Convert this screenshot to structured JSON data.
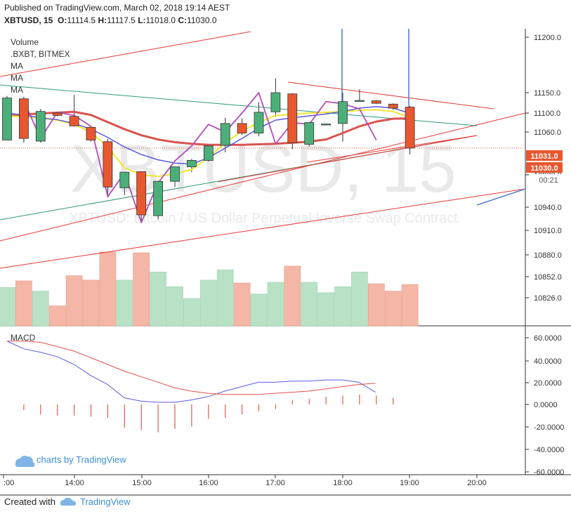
{
  "header": {
    "published": "Published on TradingView.com, March 02, 2018 19:14 AEST",
    "symbol": "XBTUSD, 15",
    "o_label": "O:",
    "o_value": "11114.5",
    "h_label": "H:",
    "h_value": "11117.5",
    "l_label": "L:",
    "l_value": "11018.0",
    "c_label": "C:",
    "c_value": "11030.0"
  },
  "legend": {
    "volume": "Volume",
    "bxbt": ".BXBT, BITMEX",
    "ma1": "MA",
    "ma2": "MA",
    "ma3": "MA"
  },
  "watermark": {
    "big": "XBTUSD, 15",
    "small": "XBTUSD: Bitcoin / US Dollar Perpetual Inverse Swap Contract"
  },
  "badges": {
    "price1": "11031.0",
    "price2": "11030.0",
    "countdown": "00:21"
  },
  "macd_label": "MACD",
  "charts_by": "charts by TradingView",
  "footer": {
    "created_with": "Created with",
    "brand": "TradingView"
  },
  "colors": {
    "up": "#4caf7a",
    "down": "#e8572f",
    "ma_fast": "#5a5ae0",
    "ma_mid": "#f0e62e",
    "ma_slow": "#d9534f",
    "brand": "#3d8fd6"
  },
  "chart_data": [
    {
      "type": "candlestick",
      "title": "XBTUSD, 15",
      "x_ticks": [
        ":00",
        "14:00",
        "15:00",
        "16:00",
        "17:00",
        "18:00",
        "19:00",
        "20:00"
      ],
      "y_ticks": [
        11200.0,
        11150.0,
        11100.0,
        11060.0,
        10980.0,
        10940.0,
        10910.0,
        10880.0,
        10852.0,
        10826.0
      ],
      "y_tick_labels": [
        "11200.0",
        "11150.0",
        "11100.0",
        "11060.0",
        "10980.0",
        "10940.0",
        "10910.0",
        "10880.0",
        "10852.0",
        "10826.0"
      ],
      "candles": [
        {
          "o": 11045,
          "h": 11142,
          "l": 11045,
          "c": 11137
        },
        {
          "o": 11135,
          "h": 11140,
          "l": 11040,
          "c": 11048
        },
        {
          "o": 11043,
          "h": 11110,
          "l": 11040,
          "c": 11104
        },
        {
          "o": 11100,
          "h": 11103,
          "l": 11093,
          "c": 11095
        },
        {
          "o": 11093,
          "h": 11145,
          "l": 11071,
          "c": 11073
        },
        {
          "o": 11070,
          "h": 11072,
          "l": 11042,
          "c": 11045
        },
        {
          "o": 11042,
          "h": 11047,
          "l": 10952,
          "c": 10965
        },
        {
          "o": 10964,
          "h": 10985,
          "l": 10955,
          "c": 10985
        },
        {
          "o": 10986,
          "h": 10987,
          "l": 10920,
          "c": 10930
        },
        {
          "o": 10929,
          "h": 10972,
          "l": 10924,
          "c": 10972
        },
        {
          "o": 10972,
          "h": 10995,
          "l": 10965,
          "c": 10995
        },
        {
          "o": 10995,
          "h": 11010,
          "l": 10985,
          "c": 11007
        },
        {
          "o": 11007,
          "h": 11034,
          "l": 11005,
          "c": 11034
        },
        {
          "o": 11035,
          "h": 11090,
          "l": 11022,
          "c": 11078
        },
        {
          "o": 11078,
          "h": 11089,
          "l": 11055,
          "c": 11058
        },
        {
          "o": 11058,
          "h": 11127,
          "l": 11052,
          "c": 11102
        },
        {
          "o": 11103,
          "h": 11163,
          "l": 11092,
          "c": 11150
        },
        {
          "o": 11147,
          "h": 11149,
          "l": 11028,
          "c": 11040
        },
        {
          "o": 11037,
          "h": 11080,
          "l": 11033,
          "c": 11080
        },
        {
          "o": 11075,
          "h": 11077,
          "l": 11075,
          "c": 11077
        },
        {
          "o": 11078,
          "h": 11150,
          "l": 11042,
          "c": 11128
        },
        {
          "o": 11130,
          "h": 11153,
          "l": 11128,
          "c": 11131
        },
        {
          "o": 11130,
          "h": 11132,
          "l": 11122,
          "c": 11124
        },
        {
          "o": 11122,
          "h": 11124,
          "l": 11108,
          "c": 11112
        },
        {
          "o": 11114.5,
          "h": 11117.5,
          "l": 11018.0,
          "c": 11030.0
        }
      ],
      "volume_up": [
        true,
        false,
        true,
        false,
        false,
        false,
        false,
        true,
        false,
        true,
        true,
        true,
        true,
        true,
        false,
        true,
        true,
        false,
        true,
        true,
        true,
        true,
        false,
        false,
        false
      ],
      "volume_rel": [
        0.52,
        0.61,
        0.47,
        0.27,
        0.68,
        0.62,
        1.0,
        0.62,
        0.99,
        0.73,
        0.53,
        0.37,
        0.62,
        0.76,
        0.58,
        0.43,
        0.59,
        0.81,
        0.59,
        0.45,
        0.53,
        0.73,
        0.57,
        0.47,
        0.56
      ],
      "ma_fast": [
        11100,
        11096,
        11090,
        11086,
        11078,
        11066,
        11050,
        11032,
        11018,
        11008,
        11002,
        11000,
        11012,
        11030,
        11048,
        11068,
        11085,
        11090,
        11094,
        11098,
        11104,
        11112,
        11116,
        11112,
        11100
      ],
      "ma_mid": [
        11094,
        11092,
        11090,
        11085,
        11076,
        11060,
        11032,
        10993,
        10980,
        10978,
        10982,
        10990,
        11012,
        11040,
        11062,
        11080,
        11095,
        11097,
        11100,
        11102,
        11103,
        11107,
        11108,
        11104,
        11090
      ],
      "ma_slow": [
        11094,
        11097,
        11099,
        11101,
        11103,
        11096,
        11081,
        11066,
        11054,
        11046,
        11041,
        11038,
        11036,
        11036,
        11036,
        11037,
        11038,
        11040,
        11042,
        11046,
        11058,
        11072,
        11082,
        11088,
        11089
      ],
      "bxbt": [
        11130,
        11048,
        11102,
        11095,
        11072,
        10953,
        10984,
        10920,
        10970,
        11006,
        11034,
        11076,
        11060,
        11100,
        11150,
        11038,
        11080,
        11076,
        11128,
        11123,
        11110,
        11045
      ]
    },
    {
      "type": "line",
      "title": "MACD",
      "y_ticks": [
        60.0,
        40.0,
        20.0,
        0.0,
        -20.0,
        -40.0,
        -60.0
      ],
      "y_tick_labels": [
        "60.0000",
        "40.0000",
        "20.0000",
        "0.0000",
        "-20.0000",
        "-40.0000",
        "-60.0000"
      ],
      "series": [
        {
          "values": [
            57,
            50,
            47,
            43,
            36,
            26,
            18,
            6,
            3,
            2,
            2,
            4,
            7,
            12,
            16,
            20,
            20,
            21,
            21,
            22,
            22,
            20,
            11
          ]
        },
        {
          "values": [
            57,
            57,
            56,
            52,
            48,
            42,
            36,
            30,
            25,
            20,
            15,
            12,
            10,
            9,
            9,
            9,
            10,
            11,
            12,
            14,
            16,
            18,
            19
          ]
        }
      ],
      "histogram": [
        0,
        -5,
        -9,
        -10,
        -10,
        -11,
        -12,
        -21,
        -23,
        -25,
        -22,
        -20,
        -13,
        -12,
        -9,
        -6,
        -4,
        4,
        5,
        7,
        8,
        9,
        8,
        6
      ]
    }
  ]
}
